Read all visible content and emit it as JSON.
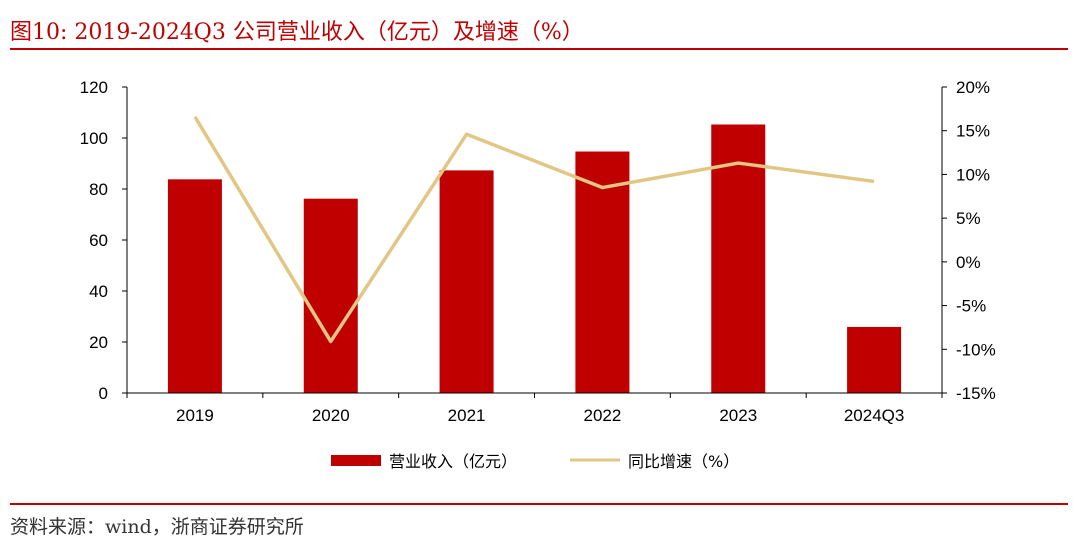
{
  "figure": {
    "title": "图10:  2019-2024Q3 公司营业收入（亿元）及增速（%）",
    "source": "资料来源：wind，浙商证券研究所"
  },
  "colors": {
    "bar": "#c00000",
    "line": "#e2c684",
    "rule": "#c00000",
    "axis": "#000000"
  },
  "chart_data": {
    "type": "bar+line",
    "categories": [
      "2019",
      "2020",
      "2021",
      "2022",
      "2023",
      "2024Q3"
    ],
    "series": [
      {
        "name": "营业收入（亿元）",
        "type": "bar",
        "axis": "left",
        "values": [
          83.8,
          76.2,
          87.3,
          94.7,
          105.3,
          25.9
        ]
      },
      {
        "name": "同比增速（%）",
        "type": "line",
        "axis": "right",
        "values": [
          16.6,
          -9.1,
          14.6,
          8.5,
          11.3,
          9.2
        ]
      }
    ],
    "y_left": {
      "min": 0,
      "max": 120,
      "ticks": [
        "0",
        "20",
        "40",
        "60",
        "80",
        "100",
        "120"
      ]
    },
    "y_right": {
      "min": -15,
      "max": 20,
      "ticks": [
        "-15%",
        "-10%",
        "-5%",
        "0%",
        "5%",
        "10%",
        "15%",
        "20%"
      ]
    },
    "grid": false,
    "legend_position": "bottom"
  }
}
